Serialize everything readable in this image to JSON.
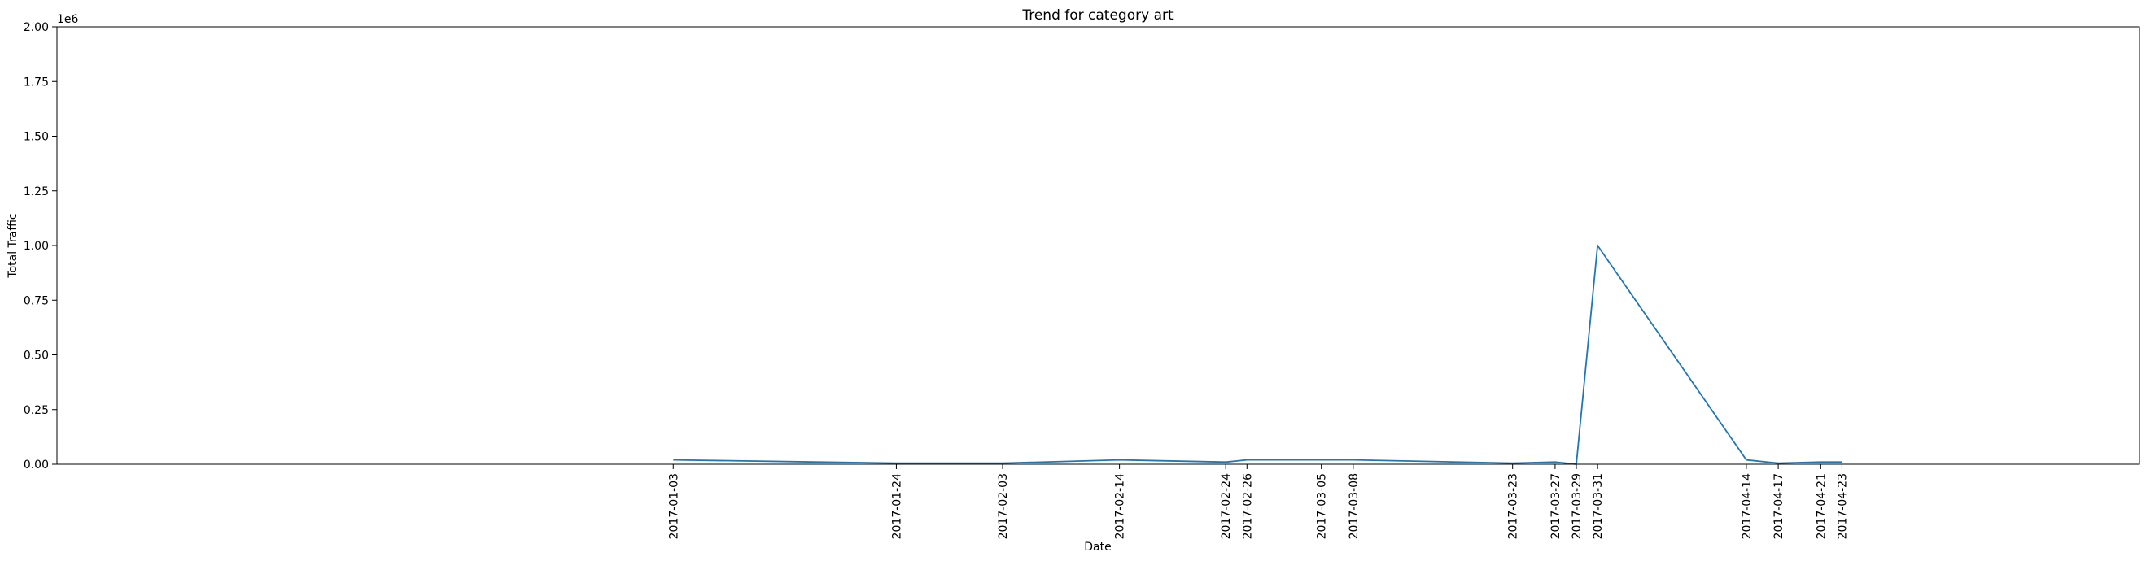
{
  "chart_data": {
    "type": "line",
    "title": "Trend for category art",
    "xlabel": "Date",
    "ylabel": "Total Traffic",
    "y_offset_label": "1e6",
    "ylim": [
      0,
      2000000
    ],
    "xlim": [
      "2016-11-06",
      "2017-05-21"
    ],
    "yticks": [
      0,
      250000,
      500000,
      750000,
      1000000,
      1250000,
      1500000,
      1750000,
      2000000
    ],
    "ytick_labels": [
      "0.00",
      "0.25",
      "0.50",
      "0.75",
      "1.00",
      "1.25",
      "1.50",
      "1.75",
      "2.00"
    ],
    "xtick_labels": [
      "2017-01-03",
      "2017-01-24",
      "2017-02-03",
      "2017-02-14",
      "2017-02-24",
      "2017-02-26",
      "2017-03-05",
      "2017-03-08",
      "2017-03-23",
      "2017-03-27",
      "2017-03-29",
      "2017-03-31",
      "2017-04-14",
      "2017-04-17",
      "2017-04-21",
      "2017-04-23"
    ],
    "grid": false,
    "color": "#1f77b4",
    "series": [
      {
        "x": [
          "2017-01-03",
          "2017-01-24",
          "2017-02-03",
          "2017-02-14",
          "2017-02-24",
          "2017-02-26",
          "2017-03-05",
          "2017-03-08",
          "2017-03-23",
          "2017-03-27",
          "2017-03-29",
          "2017-03-31",
          "2017-04-14",
          "2017-04-17",
          "2017-04-21",
          "2017-04-23"
        ],
        "y": [
          20000,
          5000,
          5000,
          20000,
          10000,
          20000,
          20000,
          20000,
          5000,
          10000,
          0,
          1000000,
          20000,
          5000,
          10000,
          10000
        ]
      }
    ]
  }
}
